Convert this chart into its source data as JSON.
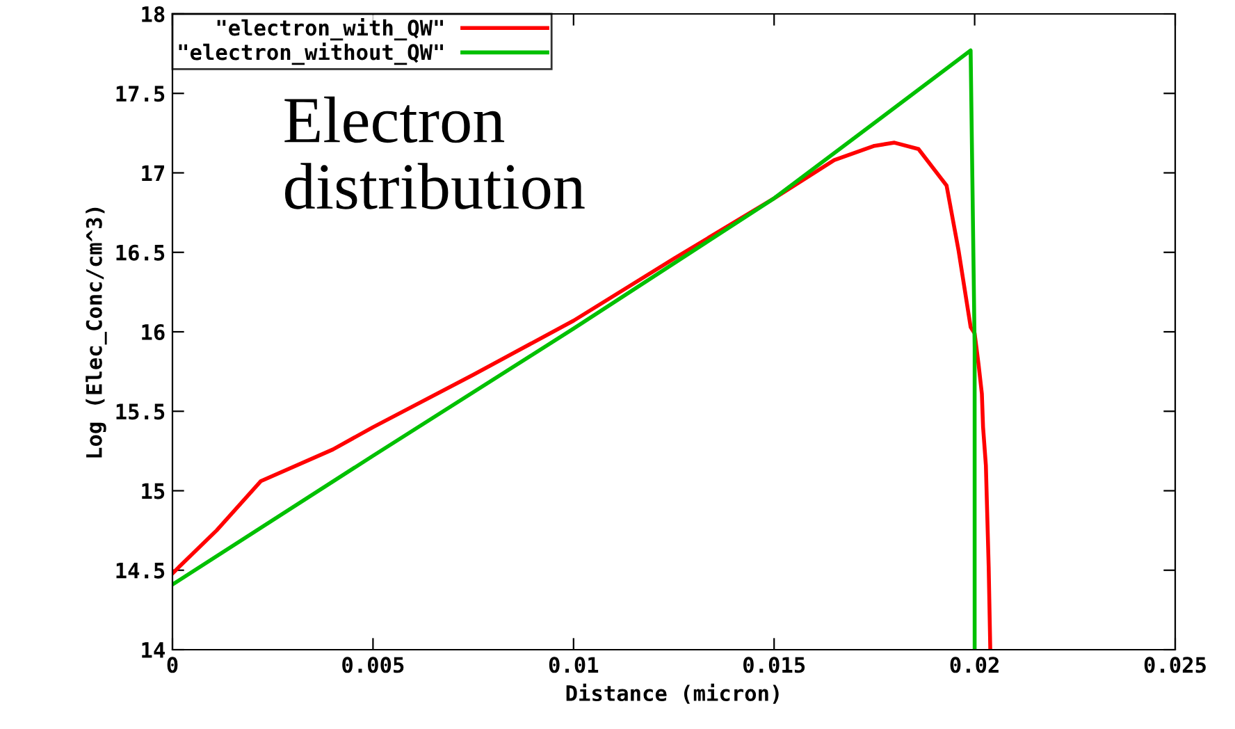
{
  "chart_data": {
    "type": "line",
    "xlabel": "Distance (micron)",
    "ylabel": "Log (Elec_Conc/cm^3)",
    "xlim": [
      0,
      0.025
    ],
    "xticks": [
      0,
      0.005,
      0.01,
      0.015,
      0.02,
      0.025
    ],
    "ylim": [
      14,
      18
    ],
    "yticks": [
      14,
      14.5,
      15,
      15.5,
      16,
      16.5,
      17,
      17.5,
      18
    ],
    "grid": false,
    "legend": "top left",
    "marker": "none",
    "line_style": "solid",
    "annotations": [
      "Electron\ndistribution"
    ],
    "series": [
      {
        "name": "\"electron_with_QW\"",
        "color": "#ff0000",
        "x": [
          0,
          0.0011,
          0.0022,
          0.004,
          0.005,
          0.0075,
          0.01,
          0.0125,
          0.015,
          0.0165,
          0.0175,
          0.018,
          0.0186,
          0.0193,
          0.0196,
          0.0199,
          0.02,
          0.0201,
          0.02018,
          0.02021,
          0.02028,
          0.02035,
          0.02039
        ],
        "values": [
          14.48,
          14.75,
          15.06,
          15.26,
          15.4,
          15.73,
          16.07,
          16.46,
          16.84,
          17.08,
          17.17,
          17.19,
          17.15,
          16.92,
          16.51,
          16.03,
          15.99,
          15.79,
          15.61,
          15.4,
          15.16,
          14.52,
          14.0
        ]
      },
      {
        "name": "\"electron_without_QW\"",
        "color": "#00c000",
        "x": [
          0,
          0.005,
          0.01,
          0.015,
          0.0199,
          0.02,
          0.02
        ],
        "values": [
          14.41,
          15.22,
          16.02,
          16.84,
          17.77,
          15.9,
          14.0
        ]
      }
    ]
  }
}
